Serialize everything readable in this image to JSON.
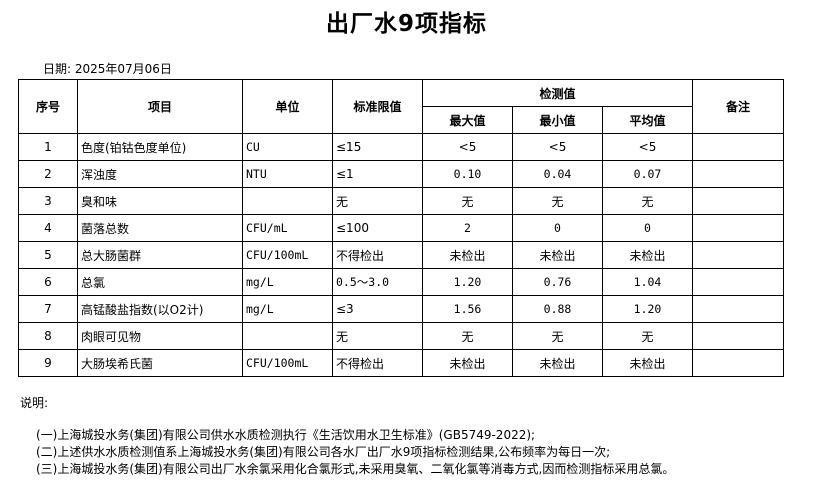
{
  "title": "出厂水9项指标",
  "date": "日期: 2025年07月06日",
  "headers": {
    "seq": "序号",
    "item": "项目",
    "unit": "单位",
    "standard": "标准限值",
    "measured": "检测值",
    "max": "最大值",
    "min": "最小值",
    "avg": "平均值",
    "remarks": "备注"
  },
  "rows": [
    {
      "seq": "1",
      "item": "色度(铂钴色度单位)",
      "unit": "CU",
      "standard": "≤15",
      "max": "<5",
      "min": "<5",
      "avg": "<5",
      "remarks": ""
    },
    {
      "seq": "2",
      "item": "浑浊度",
      "unit": "NTU",
      "standard": "≤1",
      "max": "0.10",
      "min": "0.04",
      "avg": "0.07",
      "remarks": ""
    },
    {
      "seq": "3",
      "item": "臭和味",
      "unit": "",
      "standard": "无",
      "max": "无",
      "min": "无",
      "avg": "无",
      "remarks": ""
    },
    {
      "seq": "4",
      "item": "菌落总数",
      "unit": "CFU/mL",
      "standard": "≤100",
      "max": "2",
      "min": "0",
      "avg": "0",
      "remarks": ""
    },
    {
      "seq": "5",
      "item": "总大肠菌群",
      "unit": "CFU/100mL",
      "standard": "不得检出",
      "max": "未检出",
      "min": "未检出",
      "avg": "未检出",
      "remarks": ""
    },
    {
      "seq": "6",
      "item": "总氯",
      "unit": "mg/L",
      "standard": "0.5～3.0",
      "max": "1.20",
      "min": "0.76",
      "avg": "1.04",
      "remarks": ""
    },
    {
      "seq": "7",
      "item": "高锰酸盐指数(以O2计)",
      "unit": "mg/L",
      "standard": "≤3",
      "max": "1.56",
      "min": "0.88",
      "avg": "1.20",
      "remarks": ""
    },
    {
      "seq": "8",
      "item": "肉眼可见物",
      "unit": "",
      "standard": "无",
      "max": "无",
      "min": "无",
      "avg": "无",
      "remarks": ""
    },
    {
      "seq": "9",
      "item": "大肠埃希氏菌",
      "unit": "CFU/100mL",
      "standard": "不得检出",
      "max": "未检出",
      "min": "未检出",
      "avg": "未检出",
      "remarks": ""
    }
  ],
  "notes": {
    "title": "说明:",
    "items": [
      "(一)上海城投水务(集团)有限公司供水水质检测执行《生活饮用水卫生标准》(GB5749-2022);",
      "(二)上述供水水质检测值系上海城投水务(集团)有限公司各水厂出厂水9项指标检测结果,公布频率为每日一次;",
      "(三)上海城投水务(集团)有限公司出厂水余氯采用化合氯形式,未采用臭氧、二氧化氯等消毒方式,因而检测指标采用总氯。"
    ]
  }
}
